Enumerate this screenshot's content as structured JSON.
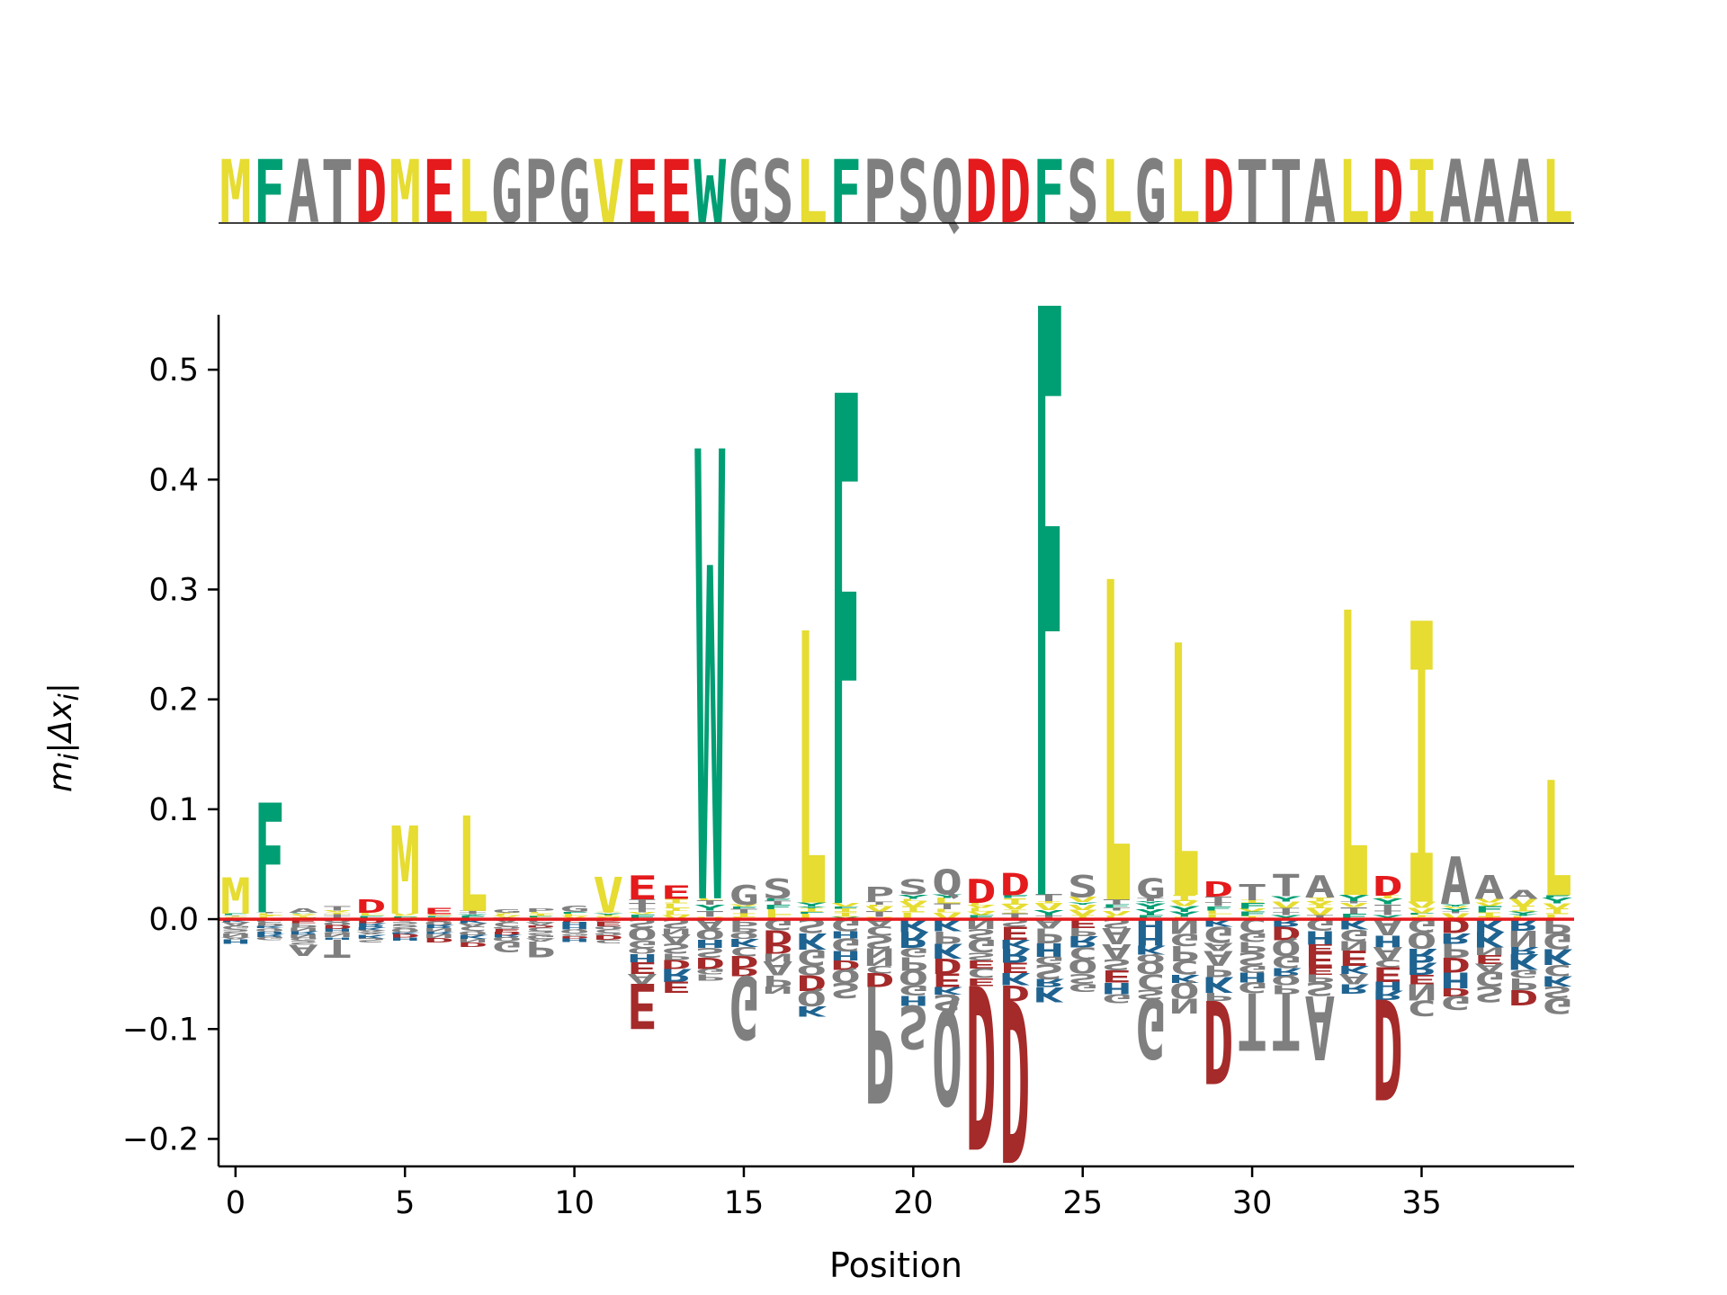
{
  "chart_data": {
    "type": "sequence-logo",
    "xlabel": "Position",
    "ylabel_html": "m<sub>i</sub>|Δx<sub>i</sub>|",
    "xlim": [
      -0.5,
      39.5
    ],
    "ylim": [
      -0.225,
      0.55
    ],
    "xticks": [
      0,
      5,
      10,
      15,
      20,
      25,
      30,
      35
    ],
    "yticks": [
      -0.2,
      -0.1,
      0.0,
      0.1,
      0.2,
      0.3,
      0.4,
      0.5
    ],
    "ytick_labels": [
      "−0.2",
      "−0.1",
      "0.0",
      "0.1",
      "0.2",
      "0.3",
      "0.4",
      "0.5"
    ],
    "sequence": "MFATDMELGPGVEEWGSLFPSQDDFSLGLDTTALDIAAAL",
    "colors": {
      "hydrophobic": "#e6dc32",
      "aromatic": "#009e73",
      "acidic": "#e41a1c",
      "acidic_neg": "#a52a2a",
      "basic": "#1f6391",
      "other": "#7f7f7f",
      "zero_line": "#e41a1c"
    },
    "residue_classes": {
      "hydrophobic": [
        "M",
        "L",
        "I",
        "V"
      ],
      "aromatic": [
        "F",
        "W",
        "Y"
      ],
      "acidic": [
        "D",
        "E"
      ],
      "basic": [
        "K",
        "R",
        "H"
      ]
    },
    "top_letter_heights": [
      0.033,
      0.1,
      0.004,
      0.004,
      0.012,
      0.08,
      0.006,
      0.087,
      0.003,
      0.003,
      0.006,
      0.032,
      0.022,
      0.012,
      0.41,
      0.018,
      0.018,
      0.248,
      0.465,
      0.013,
      0.014,
      0.023,
      0.022,
      0.02,
      0.55,
      0.02,
      0.292,
      0.018,
      0.23,
      0.014,
      0.015,
      0.02,
      0.02,
      0.26,
      0.018,
      0.256,
      0.043,
      0.022,
      0.008,
      0.105
    ],
    "negative_highlights": [
      {
        "position": 3,
        "letter": "T",
        "value": -0.035
      },
      {
        "position": 2,
        "letter": "A",
        "value": -0.025
      },
      {
        "position": 8,
        "letter": "G",
        "value": -0.03
      },
      {
        "position": 9,
        "letter": "P",
        "value": -0.035
      },
      {
        "position": 12,
        "letter": "E",
        "value": -0.1
      },
      {
        "position": 13,
        "letter": "E",
        "value": -0.064
      },
      {
        "position": 15,
        "letter": "G",
        "value": -0.11
      },
      {
        "position": 19,
        "letter": "P",
        "value": -0.168
      },
      {
        "position": 20,
        "letter": "S",
        "value": -0.118
      },
      {
        "position": 21,
        "letter": "Q",
        "value": -0.17
      },
      {
        "position": 22,
        "letter": "D",
        "value": -0.21
      },
      {
        "position": 23,
        "letter": "D",
        "value": -0.222
      },
      {
        "position": 27,
        "letter": "G",
        "value": -0.128
      },
      {
        "position": 29,
        "letter": "D",
        "value": -0.15
      },
      {
        "position": 30,
        "letter": "T",
        "value": -0.12
      },
      {
        "position": 31,
        "letter": "T",
        "value": -0.12
      },
      {
        "position": 32,
        "letter": "A",
        "value": -0.128
      },
      {
        "position": 34,
        "letter": "D",
        "value": -0.165
      }
    ],
    "background_letters": [
      "V",
      "L",
      "F",
      "I",
      "Y",
      "T",
      "A",
      "S",
      "G",
      "P",
      "Q",
      "N",
      "C",
      "E",
      "D",
      "K",
      "R",
      "H"
    ]
  }
}
